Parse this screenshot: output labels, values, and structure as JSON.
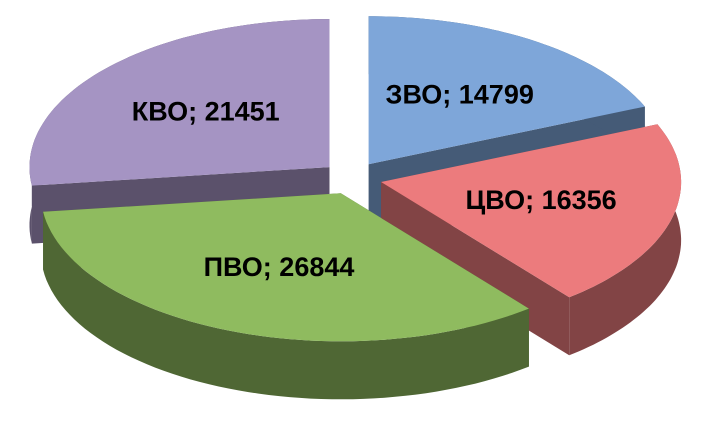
{
  "chart_data": {
    "type": "pie",
    "values": [
      14799,
      16356,
      26844,
      21451
    ],
    "value_labels": [
      "ЗВО; 14799",
      "ЦВО; 16356",
      "ПВО; 26844",
      "КВО; 21451"
    ],
    "colors": [
      "#7ea6d9",
      "#ec7b7d",
      "#8fbb5f",
      "#a594c3"
    ]
  }
}
